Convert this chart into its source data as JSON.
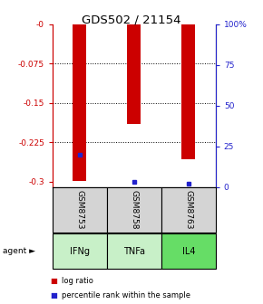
{
  "title": "GDS502 / 21154",
  "samples": [
    "GSM8753",
    "GSM8758",
    "GSM8763"
  ],
  "agents": [
    "IFNg",
    "TNFa",
    "IL4"
  ],
  "log_ratios": [
    -0.298,
    -0.19,
    -0.258
  ],
  "percentile_ranks_pct": [
    20,
    3,
    2
  ],
  "bar_color": "#cc0000",
  "dot_color": "#2222cc",
  "ylim_left": [
    -0.31,
    0.0
  ],
  "yticks_left": [
    0.0,
    -0.075,
    -0.15,
    -0.225,
    -0.3
  ],
  "ytick_labels_left": [
    "-0",
    "-0.075",
    "-0.15",
    "-0.225",
    "-0.3"
  ],
  "ytick_labels_right": [
    "100%",
    "75",
    "50",
    "25",
    "0"
  ],
  "agent_colors": [
    "#c8f0c8",
    "#c8f0c8",
    "#66dd66"
  ],
  "sample_box_color": "#d4d4d4",
  "bar_width": 0.25,
  "left_axis_color": "#cc0000",
  "right_axis_color": "#2222cc",
  "legend_log_ratio_label": "log ratio",
  "legend_percentile_label": "percentile rank within the sample"
}
